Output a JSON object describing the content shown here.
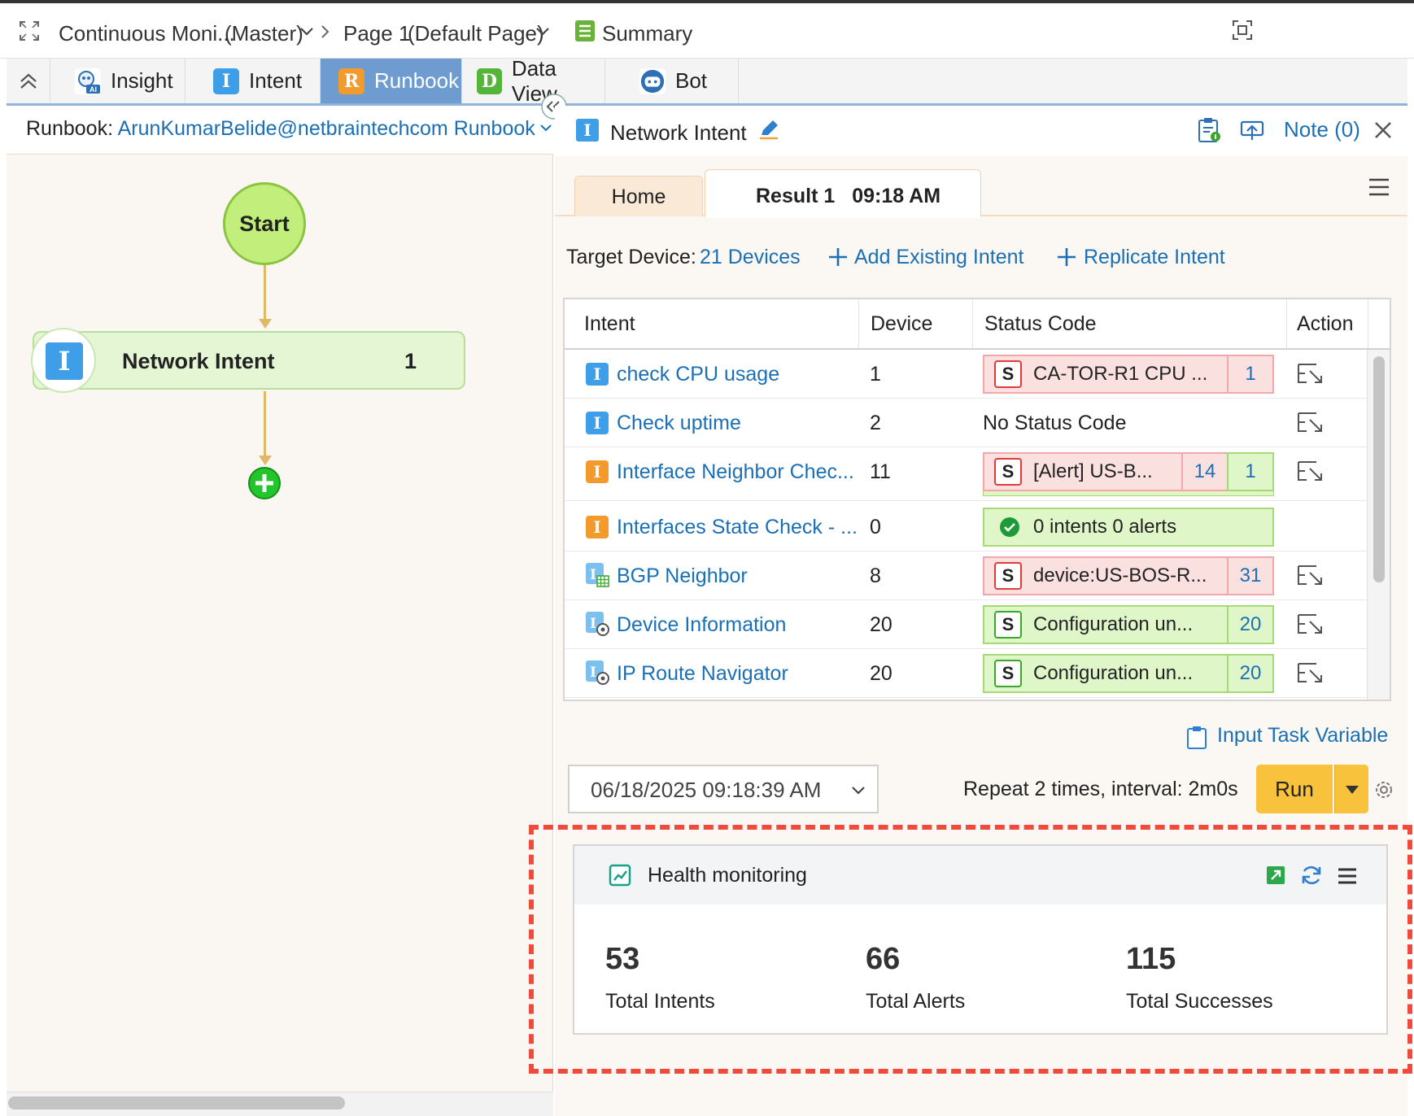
{
  "topbar": {
    "map_name": "Continuous Moni...",
    "map_tag": "(Master)",
    "page_name": "Page 1",
    "page_tag": "(Default Page)",
    "summary_label": "Summary"
  },
  "tabs": [
    {
      "label": "Insight",
      "icon": "insight-ai-icon"
    },
    {
      "label": "Intent",
      "icon": "intent-i-icon"
    },
    {
      "label": "Runbook",
      "icon": "runbook-r-icon",
      "active": true
    },
    {
      "label": "Data View",
      "icon": "dataview-d-icon"
    },
    {
      "label": "Bot",
      "icon": "bot-icon"
    }
  ],
  "runbook": {
    "label": "Runbook:",
    "name": "ArunKumarBelide@netbraintechcom Runbook"
  },
  "flow": {
    "start_label": "Start",
    "node_label": "Network Intent",
    "node_count": "1"
  },
  "panel": {
    "title": "Network Intent",
    "note_label": "Note (0)",
    "home_tab": "Home",
    "result_tab": "Result 1",
    "result_time": "09:18 AM",
    "target_label": "Target Device:",
    "target_value": "21 Devices",
    "add_existing": "Add Existing Intent",
    "replicate": "Replicate Intent"
  },
  "table": {
    "headers": [
      "Intent",
      "Device",
      "Status Code",
      "Action"
    ],
    "rows": [
      {
        "name": "check CPU usage",
        "device": "1",
        "status_text": "CA-TOR-R1 CPU ...",
        "status_color": "red",
        "counts": [
          "1"
        ]
      },
      {
        "name": "Check uptime",
        "device": "2",
        "status_text": "No Status Code",
        "status_color": "none",
        "counts": []
      },
      {
        "name": "Interface Neighbor Chec...",
        "device": "11",
        "status_text": "[Alert] US-B...",
        "status_color": "red",
        "counts": [
          "14",
          "1"
        ]
      },
      {
        "name": "Interfaces State Check - ...",
        "device": "0",
        "status_text": "0 intents 0 alerts",
        "status_color": "green",
        "counts": []
      },
      {
        "name": "BGP Neighbor",
        "device": "8",
        "status_text": "device:US-BOS-R...",
        "status_color": "red",
        "counts": [
          "31"
        ]
      },
      {
        "name": "Device Information",
        "device": "20",
        "status_text": "Configuration un...",
        "status_color": "green",
        "counts": [
          "20"
        ]
      },
      {
        "name": "IP Route Navigator",
        "device": "20",
        "status_text": "Configuration un...",
        "status_color": "green",
        "counts": [
          "20"
        ]
      }
    ]
  },
  "input_task_variable": "Input Task Variable",
  "run": {
    "datetime": "06/18/2025 09:18:39 AM",
    "repeat": "Repeat 2 times, interval: 2m0s",
    "button": "Run"
  },
  "health": {
    "title": "Health monitoring",
    "stats": [
      {
        "value": "53",
        "label": "Total Intents"
      },
      {
        "value": "66",
        "label": "Total Alerts"
      },
      {
        "value": "115",
        "label": "Total Successes"
      }
    ]
  },
  "colors": {
    "link": "#1a6fb5",
    "active_tab": "#6f9cd0",
    "start_node": "#c2ef7c",
    "run_button": "#f9c23c",
    "highlight_dash": "#ef4a3c"
  }
}
